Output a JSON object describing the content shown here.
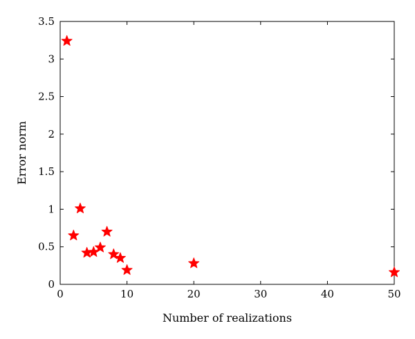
{
  "chart_data": {
    "type": "scatter",
    "title": "",
    "xlabel": "Number of realizations",
    "ylabel": "Error norm",
    "xlim": [
      0,
      50
    ],
    "ylim": [
      0,
      3.5
    ],
    "xticks": [
      "0",
      "10",
      "20",
      "30",
      "40",
      "50"
    ],
    "yticks": [
      "0",
      "0.5",
      "1",
      "1.5",
      "2",
      "2.5",
      "3",
      "3.5"
    ],
    "grid": false,
    "legend": "none",
    "marker": "star",
    "marker_color": "#ff0000",
    "series": [
      {
        "points": [
          {
            "x": 1,
            "y": 3.24
          },
          {
            "x": 2,
            "y": 0.65
          },
          {
            "x": 3,
            "y": 1.01
          },
          {
            "x": 4,
            "y": 0.42
          },
          {
            "x": 5,
            "y": 0.43
          },
          {
            "x": 6,
            "y": 0.49
          },
          {
            "x": 7,
            "y": 0.7
          },
          {
            "x": 8,
            "y": 0.4
          },
          {
            "x": 9,
            "y": 0.35
          },
          {
            "x": 10,
            "y": 0.19
          },
          {
            "x": 20,
            "y": 0.28
          },
          {
            "x": 50,
            "y": 0.16
          }
        ]
      }
    ]
  }
}
